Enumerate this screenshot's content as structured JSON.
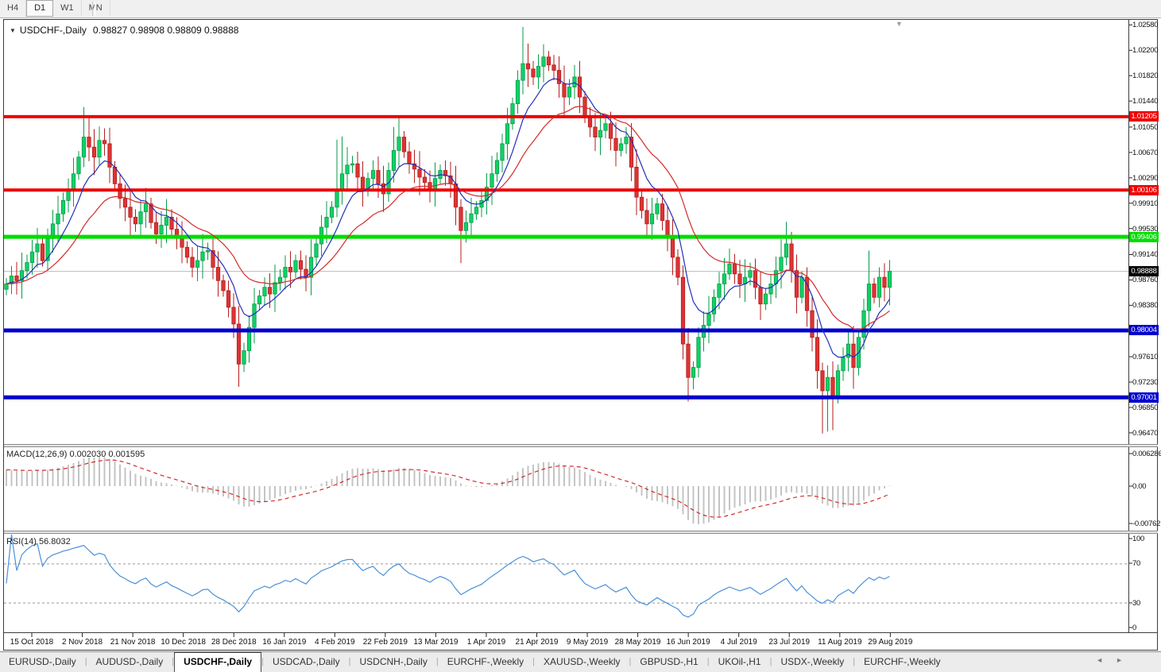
{
  "toolbar": {
    "timeframes": [
      "H4",
      "D1",
      "W1",
      "MN"
    ],
    "active": "D1"
  },
  "header": {
    "symbol": "USDCHF-,Daily",
    "ohlc": "0.98827 0.98908 0.98809 0.98888"
  },
  "price_axis": {
    "ticks": [
      "1.02580",
      "1.02200",
      "1.01820",
      "1.01440",
      "1.01050",
      "1.00670",
      "1.00290",
      "0.99910",
      "0.99530",
      "0.99140",
      "0.98760",
      "0.98380",
      "0.97610",
      "0.97230",
      "0.96850",
      "0.96470"
    ]
  },
  "tabs": {
    "items": [
      "EURUSD-,Daily",
      "AUDUSD-,Daily",
      "USDCHF-,Daily",
      "USDCAD-,Daily",
      "USDCNH-,Daily",
      "EURCHF-,Weekly",
      "XAUUSD-,Weekly",
      "GBPUSD-,H1",
      "UKOil-,H1",
      "USDX-,Weekly",
      "EURCHF-,Weekly"
    ],
    "active_index": 2,
    "scroll_left": "◄",
    "scroll_right": "►"
  },
  "chart_data": {
    "type": "candlestick",
    "symbol": "USDCHF-,Daily",
    "timeframe": "Daily",
    "bull_color": "#0fd267",
    "bull_border": "#089a48",
    "bear_color": "#dd3434",
    "bear_border": "#b31d1d",
    "current_price": {
      "value": 0.98888,
      "label": "0.98888",
      "line_color": "#bbbbbb",
      "chip_color": "#000000"
    },
    "levels": [
      {
        "value": 1.01205,
        "label": "1.01205",
        "color": "#f00000",
        "width": 4
      },
      {
        "value": 1.00106,
        "label": "1.00106",
        "color": "#f00000",
        "width": 4
      },
      {
        "value": 0.99406,
        "label": "0.99406",
        "color": "#00dd00",
        "width": 5
      },
      {
        "value": 0.98004,
        "label": "0.98004",
        "color": "#0000cd",
        "width": 5
      },
      {
        "value": 0.97001,
        "label": "0.97001",
        "color": "#0000cd",
        "width": 5
      }
    ],
    "ma_lines": [
      {
        "name": "fast",
        "period": 8,
        "color": "#2230b8"
      },
      {
        "name": "slow",
        "period": 21,
        "color": "#d42a2a"
      }
    ],
    "x_labels": [
      "15 Oct 2018",
      "2 Nov 2018",
      "21 Nov 2018",
      "10 Dec 2018",
      "28 Dec 2018",
      "16 Jan 2019",
      "4 Feb 2019",
      "22 Feb 2019",
      "13 Mar 2019",
      "1 Apr 2019",
      "21 Apr 2019",
      "9 May 2019",
      "28 May 2019",
      "16 Jun 2019",
      "4 Jul 2019",
      "23 Jul 2019",
      "11 Aug 2019",
      "29 Aug 2019"
    ],
    "first_open": 0.9862,
    "default_wick": 0.0009,
    "closes": [
      0.987,
      0.9882,
      0.9875,
      0.989,
      0.9902,
      0.9918,
      0.993,
      0.9905,
      0.9938,
      0.996,
      0.9975,
      0.9995,
      1.001,
      1.0035,
      1.006,
      1.009,
      1.0075,
      1.006,
      1.0085,
      1.008,
      1.0045,
      1.002,
      0.9998,
      0.9985,
      0.997,
      0.996,
      0.9978,
      0.999,
      0.9962,
      0.9945,
      0.9958,
      0.997,
      0.9952,
      0.994,
      0.9925,
      0.991,
      0.9895,
      0.9905,
      0.9918,
      0.992,
      0.9895,
      0.9875,
      0.986,
      0.9835,
      0.981,
      0.975,
      0.977,
      0.9805,
      0.984,
      0.9852,
      0.9865,
      0.9855,
      0.9872,
      0.988,
      0.9895,
      0.9888,
      0.9905,
      0.9892,
      0.988,
      0.991,
      0.993,
      0.9955,
      0.997,
      0.9985,
      1.001,
      1.0035,
      1.0048,
      1.005,
      1.003,
      1.001,
      1.0028,
      1.004,
      1.002,
      1.0005,
      1.004,
      1.007,
      1.009,
      1.0068,
      1.005,
      1.0042,
      1.003,
      1.0022,
      1.001,
      1.0028,
      1.004,
      1.0032,
      1.002,
      0.9985,
      0.995,
      0.9962,
      0.9975,
      0.9985,
      0.9995,
      1.0015,
      1.0035,
      1.0055,
      1.008,
      1.011,
      1.014,
      1.0175,
      1.02,
      1.0192,
      1.018,
      1.0196,
      1.021,
      1.0198,
      1.019,
      1.017,
      1.015,
      1.0165,
      1.018,
      1.015,
      1.012,
      1.0105,
      1.009,
      1.01,
      1.011,
      1.0088,
      1.007,
      1.008,
      1.009,
      1.0045,
      1.0,
      0.998,
      0.996,
      0.9975,
      0.999,
      0.9965,
      0.994,
      0.991,
      0.988,
      0.978,
      0.973,
      0.9745,
      0.979,
      0.9808,
      0.9825,
      0.985,
      0.987,
      0.9885,
      0.99,
      0.9885,
      0.987,
      0.988,
      0.989,
      0.9865,
      0.984,
      0.9855,
      0.987,
      0.989,
      0.991,
      0.993,
      0.989,
      0.985,
      0.988,
      0.983,
      0.979,
      0.974,
      0.971,
      0.973,
      0.97,
      0.974,
      0.976,
      0.978,
      0.9745,
      0.979,
      0.983,
      0.987,
      0.985,
      0.988,
      0.9865,
      0.9889
    ],
    "high_overrides": {
      "15": 1.0135,
      "16": 1.0121,
      "18": 1.0106,
      "64": 1.0086,
      "65": 1.0091,
      "75": 1.0105,
      "76": 1.0122,
      "96": 1.0095,
      "100": 1.0255,
      "101": 1.023,
      "104": 1.0229,
      "140": 0.9923,
      "151": 0.9963,
      "167": 0.992,
      "171": 0.9906
    },
    "low_overrides": {
      "45": 0.9716,
      "46": 0.9738,
      "88": 0.9901,
      "131": 0.9757,
      "132": 0.9694,
      "133": 0.9712,
      "155": 0.9806,
      "158": 0.9646,
      "159": 0.9649,
      "160": 0.9651,
      "164": 0.9713
    },
    "indicators": [
      {
        "name": "MACD",
        "label": "MACD(12,26,9) 0.002030 0.001595",
        "params": [
          12,
          26,
          9
        ],
        "values": {
          "macd": "0.002030",
          "signal": "0.001595"
        },
        "axis": [
          "0.006286",
          "0.00",
          "-0.00762"
        ],
        "histogram_color": "#c4c4c4",
        "signal_color": "#d42a2a"
      },
      {
        "name": "RSI",
        "label": "RSI(14) 56.8032",
        "period": 14,
        "value": "56.8032",
        "axis": [
          "100",
          "70",
          "30",
          "0"
        ],
        "levels": [
          70,
          30
        ],
        "line_color": "#4a90d9",
        "level_color": "#999999"
      }
    ]
  }
}
